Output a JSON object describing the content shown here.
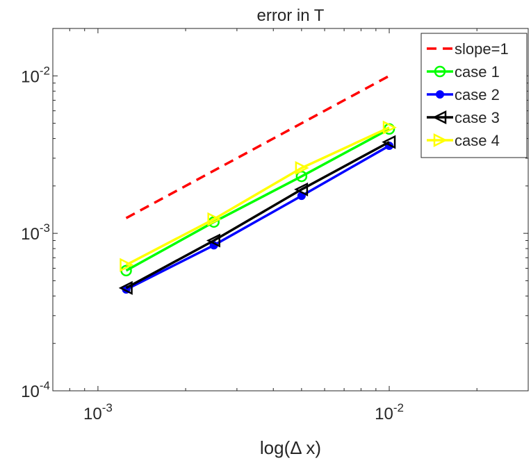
{
  "chart_data": {
    "type": "line",
    "title": "error in T",
    "xlabel_prefix": "log(",
    "xlabel_symbol": "Δ",
    "xlabel_suffix": " x)",
    "ylabel": "",
    "xscale": "log",
    "yscale": "log",
    "xlim": [
      0.0007,
      0.03
    ],
    "ylim": [
      0.0001,
      0.02
    ],
    "xticks": [
      {
        "value": 0.001,
        "base": "10",
        "exp": "-3"
      },
      {
        "value": 0.01,
        "base": "10",
        "exp": "-2"
      }
    ],
    "yticks": [
      {
        "value": 0.0001,
        "base": "10",
        "exp": "-4"
      },
      {
        "value": 0.001,
        "base": "10",
        "exp": "-3"
      },
      {
        "value": 0.01,
        "base": "10",
        "exp": "-2"
      }
    ],
    "grid": false,
    "legend_position": "top-right",
    "series": [
      {
        "name": "slope=1",
        "color": "#ff0000",
        "marker": "none",
        "dash": true,
        "x": [
          0.00125,
          0.01
        ],
        "y": [
          0.00125,
          0.01
        ]
      },
      {
        "name": "case 1",
        "color": "#00ff00",
        "marker": "circle-open",
        "x": [
          0.00125,
          0.0025,
          0.005,
          0.01
        ],
        "y": [
          0.00058,
          0.00118,
          0.0023,
          0.0046
        ]
      },
      {
        "name": "case 2",
        "color": "#0000ff",
        "marker": "circle-filled",
        "x": [
          0.00125,
          0.0025,
          0.005,
          0.01
        ],
        "y": [
          0.00044,
          0.00084,
          0.00173,
          0.0036
        ]
      },
      {
        "name": "case 3",
        "color": "#000000",
        "marker": "triangle-left",
        "x": [
          0.00125,
          0.0025,
          0.005,
          0.01
        ],
        "y": [
          0.00045,
          0.0009,
          0.0019,
          0.0038
        ]
      },
      {
        "name": "case 4",
        "color": "#ffff00",
        "marker": "triangle-right",
        "x": [
          0.00125,
          0.0025,
          0.005,
          0.01
        ],
        "y": [
          0.00063,
          0.00123,
          0.0026,
          0.0047
        ]
      }
    ]
  }
}
